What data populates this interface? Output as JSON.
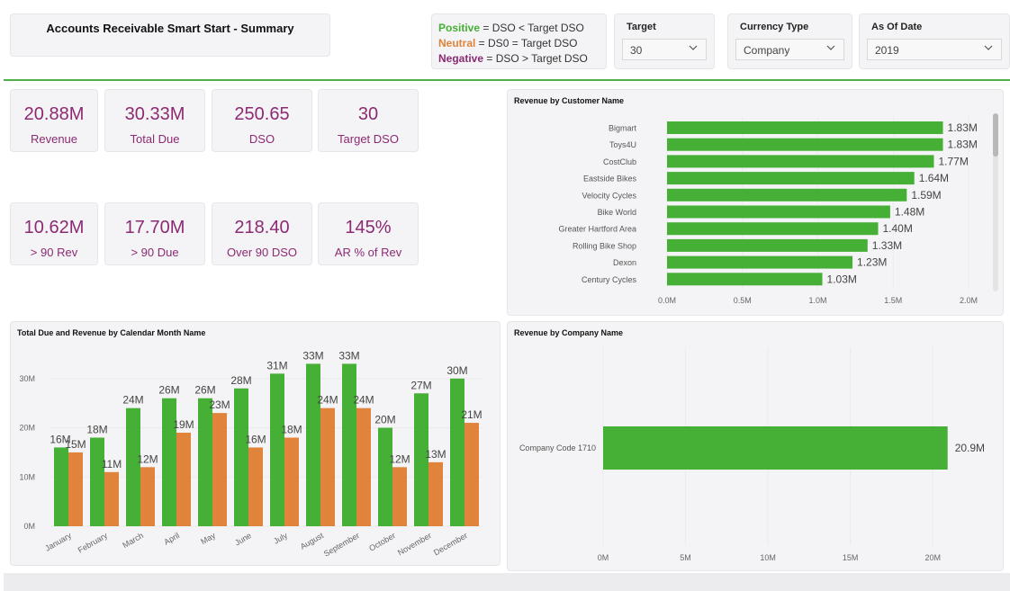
{
  "header": {
    "title": "Accounts Receivable Smart Start - Summary"
  },
  "legend": {
    "positive_label": "Positive",
    "positive_text": " = DSO <  Target DSO",
    "neutral_label": "Neutral",
    "neutral_text": " = DS0 = Target DSO",
    "negative_label": "Negative",
    "negative_text": " = DSO > Target DSO"
  },
  "slicers": {
    "target": {
      "label": "Target",
      "value": "30"
    },
    "currency": {
      "label": "Currency Type",
      "value": "Company"
    },
    "as_of_date": {
      "label": "As Of Date",
      "value": "2019"
    }
  },
  "kpis": [
    {
      "value": "20.88M",
      "label": "Revenue"
    },
    {
      "value": "30.33M",
      "label": "Total Due"
    },
    {
      "value": "250.65",
      "label": "DSO"
    },
    {
      "value": "30",
      "label": "Target DSO"
    },
    {
      "value": "10.62M",
      "label": "> 90 Rev"
    },
    {
      "value": "17.70M",
      "label": "> 90 Due"
    },
    {
      "value": "218.40",
      "label": "Over 90 DSO"
    },
    {
      "value": "145%",
      "label": "AR % of Rev"
    }
  ],
  "colors": {
    "green": "#45b035",
    "orange": "#e0843b",
    "kpi_text": "#8c2a73",
    "positive": "#45b035",
    "neutral": "#e0843b",
    "negative": "#8c2a73"
  },
  "chart_data": [
    {
      "type": "bar",
      "orientation": "horizontal",
      "title": "Revenue by Customer Name",
      "categories": [
        "Bigmart",
        "Toys4U",
        "CostClub",
        "Eastside Bikes",
        "Velocity Cycles",
        "Bike World",
        "Greater Hartford Area",
        "Rolling Bike Shop",
        "Dexon",
        "Century Cycles"
      ],
      "values": [
        1.83,
        1.83,
        1.77,
        1.64,
        1.59,
        1.48,
        1.4,
        1.33,
        1.23,
        1.03
      ],
      "data_labels": [
        "1.83M",
        "1.83M",
        "1.77M",
        "1.64M",
        "1.59M",
        "1.48M",
        "1.40M",
        "1.33M",
        "1.23M",
        "1.03M"
      ],
      "xlim": [
        0,
        2.0
      ],
      "xticks": [
        "0.0M",
        "0.5M",
        "1.0M",
        "1.5M",
        "2.0M"
      ],
      "unit": "M"
    },
    {
      "type": "bar",
      "orientation": "vertical",
      "title": "Total Due and Revenue by Calendar Month Name",
      "categories": [
        "January",
        "February",
        "March",
        "April",
        "May",
        "June",
        "July",
        "August",
        "September",
        "October",
        "November",
        "December"
      ],
      "series": [
        {
          "name": "Total Due",
          "color": "#45b035",
          "values": [
            16,
            18,
            24,
            26,
            26,
            28,
            31,
            33,
            33,
            20,
            27,
            30
          ],
          "labels": [
            "16M",
            "18M",
            "24M",
            "26M",
            "26M",
            "28M",
            "31M",
            "33M",
            "33M",
            "20M",
            "27M",
            "30M"
          ]
        },
        {
          "name": "Revenue",
          "color": "#e0843b",
          "values": [
            15,
            11,
            12,
            19,
            23,
            16,
            18,
            24,
            24,
            12,
            13,
            21
          ],
          "labels": [
            "15M",
            "11M",
            "12M",
            "19M",
            "23M",
            "16M",
            "18M",
            "24M",
            "24M",
            "12M",
            "13M",
            "21M"
          ]
        }
      ],
      "ylim": [
        0,
        36
      ],
      "yticks": [
        "0M",
        "10M",
        "20M",
        "30M"
      ],
      "ytick_values": [
        0,
        10,
        20,
        30
      ]
    },
    {
      "type": "bar",
      "orientation": "horizontal",
      "title": "Revenue by Company Name",
      "categories": [
        "Company Code 1710"
      ],
      "values": [
        20.9
      ],
      "data_labels": [
        "20.9M"
      ],
      "xlim": [
        0,
        22.5
      ],
      "xticks": [
        "0M",
        "5M",
        "10M",
        "15M",
        "20M"
      ],
      "xtick_values": [
        0,
        5,
        10,
        15,
        20
      ]
    }
  ]
}
